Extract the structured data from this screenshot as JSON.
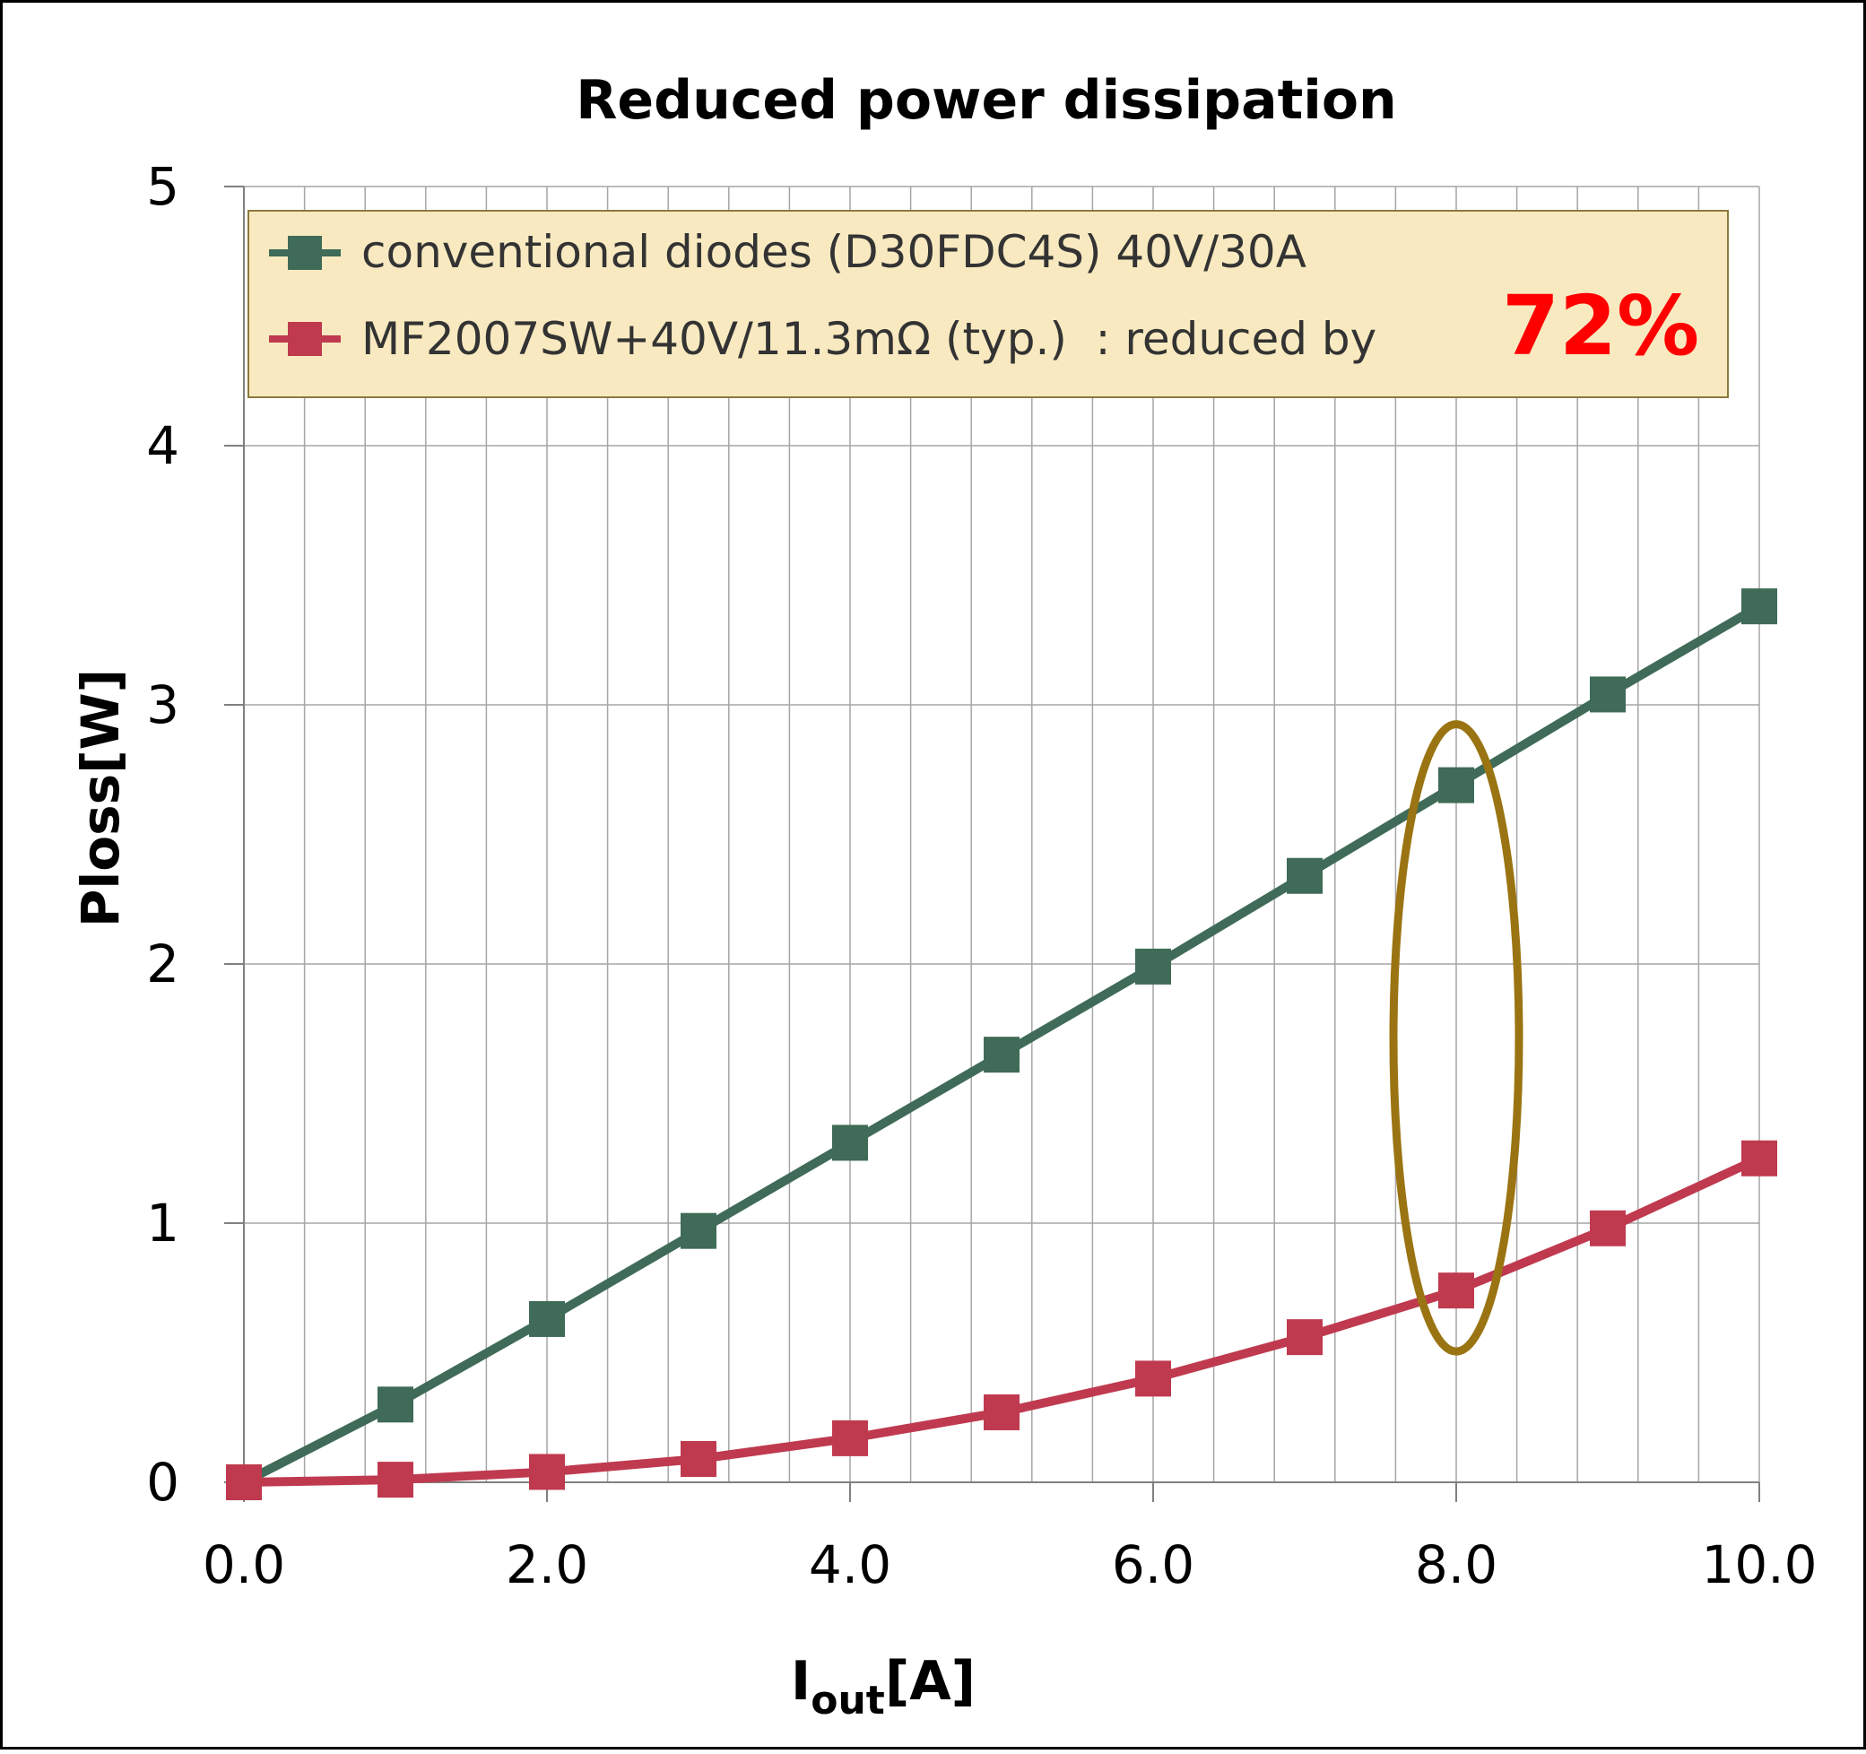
{
  "chart_data": {
    "type": "line",
    "title": "Reduced power dissipation",
    "xlabel": "I",
    "xlabel_subscript": "out",
    "xlabel_unit": "[A]",
    "ylabel": "Ploss[W]",
    "xlim": [
      0,
      10
    ],
    "ylim": [
      0,
      5
    ],
    "x_ticks": [
      "0.0",
      "2.0",
      "4.0",
      "6.0",
      "8.0",
      "10.0"
    ],
    "y_ticks": [
      "0",
      "1",
      "2",
      "3",
      "4",
      "5"
    ],
    "grid": true,
    "x_minor_step": 0.4,
    "legend_placement": "top",
    "x": [
      0,
      1,
      2,
      3,
      4,
      5,
      6,
      7,
      8,
      9,
      10
    ],
    "series": [
      {
        "name": "conventional diodes (D30FDC4S) 40V/30A",
        "color": "#3f6b58",
        "values": [
          0.0,
          0.3,
          0.63,
          0.97,
          1.31,
          1.65,
          1.99,
          2.34,
          2.69,
          3.04,
          3.38
        ]
      },
      {
        "name": "MF2007SW+40V/11.3mΩ (typ.)",
        "name_suffix": "  : reduced by",
        "color": "#bf3a4f",
        "values": [
          0.0,
          0.01,
          0.04,
          0.09,
          0.17,
          0.27,
          0.4,
          0.56,
          0.74,
          0.98,
          1.25
        ]
      }
    ],
    "annotation": {
      "text": "72%",
      "color": "#ff0000",
      "highlight_x": 8.0,
      "highlight_color": "#9a7412"
    }
  }
}
